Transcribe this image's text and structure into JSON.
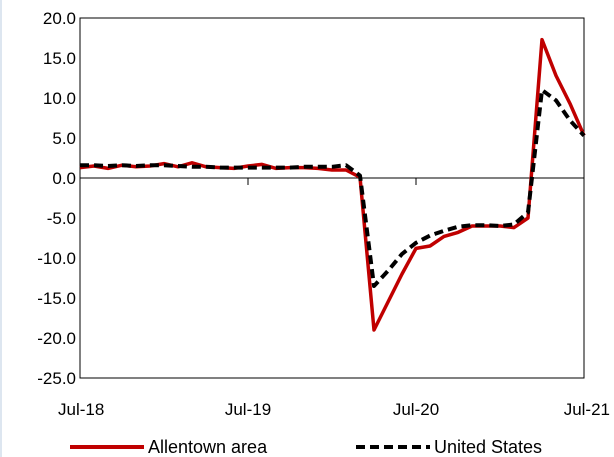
{
  "chart_data": {
    "type": "line",
    "title": "",
    "xlabel": "",
    "ylabel": "",
    "x_tick_labels": [
      "Jul-18",
      "Jul-19",
      "Jul-20",
      "Jul-21"
    ],
    "ylim": [
      -25,
      20
    ],
    "y_ticks": [
      20,
      15,
      10,
      5,
      0,
      -5,
      -10,
      -15,
      -20,
      -25
    ],
    "y_tick_labels": [
      "20.0",
      "15.0",
      "10.0",
      "5.0",
      "0.0",
      "-5.0",
      "-10.0",
      "-15.0",
      "-20.0",
      "-25.0"
    ],
    "x": [
      "2018-07",
      "2018-08",
      "2018-09",
      "2018-10",
      "2018-11",
      "2018-12",
      "2019-01",
      "2019-02",
      "2019-03",
      "2019-04",
      "2019-05",
      "2019-06",
      "2019-07",
      "2019-08",
      "2019-09",
      "2019-10",
      "2019-11",
      "2019-12",
      "2020-01",
      "2020-02",
      "2020-03",
      "2020-04",
      "2020-05",
      "2020-06",
      "2020-07",
      "2020-08",
      "2020-09",
      "2020-10",
      "2020-11",
      "2020-12",
      "2021-01",
      "2021-02",
      "2021-03",
      "2021-04",
      "2021-05",
      "2021-06",
      "2021-07"
    ],
    "series": [
      {
        "name": "Allentown area",
        "color": "#c00000",
        "dash": "solid",
        "values": [
          1.3,
          1.5,
          1.2,
          1.6,
          1.4,
          1.5,
          1.8,
          1.4,
          1.9,
          1.4,
          1.3,
          1.2,
          1.5,
          1.7,
          1.2,
          1.3,
          1.3,
          1.2,
          1.0,
          1.0,
          0.1,
          -19.0,
          -15.5,
          -12.0,
          -8.8,
          -8.5,
          -7.3,
          -6.8,
          -6.0,
          -6.0,
          -6.0,
          -6.2,
          -5.0,
          17.3,
          12.8,
          9.3,
          5.3
        ]
      },
      {
        "name": "United States",
        "color": "#000000",
        "dash": "dashed",
        "values": [
          1.6,
          1.6,
          1.5,
          1.6,
          1.5,
          1.6,
          1.6,
          1.5,
          1.4,
          1.4,
          1.3,
          1.3,
          1.3,
          1.3,
          1.3,
          1.3,
          1.4,
          1.4,
          1.4,
          1.6,
          0.3,
          -13.5,
          -11.6,
          -9.5,
          -8.1,
          -7.2,
          -6.6,
          -6.1,
          -5.9,
          -5.9,
          -6.0,
          -5.8,
          -4.3,
          11.0,
          9.7,
          7.2,
          5.3
        ]
      }
    ],
    "grid": false,
    "legend_position": "bottom"
  }
}
